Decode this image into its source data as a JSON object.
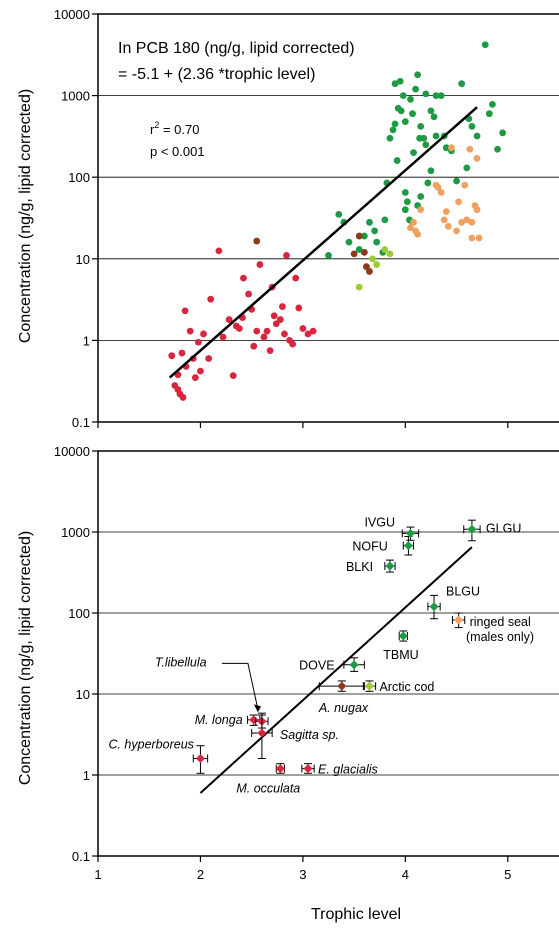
{
  "ylabel": "Concentration (ng/g, lipid corrected)",
  "xlabel": "Trophic level",
  "chart_data": [
    {
      "type": "scatter",
      "xlim": [
        1,
        5.5
      ],
      "ylim": [
        0.1,
        10000
      ],
      "yscale": "log",
      "yticks": [
        "0.1",
        "1",
        "10",
        "100",
        "1000",
        "10000"
      ],
      "xticks": [],
      "grid": "horizontal",
      "annotation_lines": [
        "In PCB 180 (ng/g, lipid corrected)",
        "= -5.1 + (2.36 *trophic level)"
      ],
      "r2_prefix": "r",
      "r2_sup": "2",
      "r2_value": " = 0.70",
      "p_text": "p < 0.001",
      "regression": {
        "x": [
          1.7,
          4.7
        ],
        "y": [
          0.35,
          720
        ]
      },
      "colors": {
        "red": "#d7263d",
        "green": "#1e9a45",
        "orange": "#f0a060",
        "brown": "#8b3a1a",
        "lightgreen": "#9acd32"
      },
      "series": [
        {
          "color_key": "red",
          "points": [
            [
              1.75,
              0.28
            ],
            [
              1.78,
              0.25
            ],
            [
              1.8,
              0.22
            ],
            [
              1.83,
              0.2
            ],
            [
              1.72,
              0.65
            ],
            [
              1.78,
              0.38
            ],
            [
              1.82,
              0.7
            ],
            [
              1.86,
              0.48
            ],
            [
              1.9,
              1.3
            ],
            [
              1.93,
              0.6
            ],
            [
              1.95,
              0.35
            ],
            [
              1.98,
              0.95
            ],
            [
              2.0,
              0.42
            ],
            [
              2.03,
              1.2
            ],
            [
              2.08,
              0.6
            ],
            [
              2.1,
              3.2
            ],
            [
              2.18,
              12.5
            ],
            [
              2.22,
              1.1
            ],
            [
              2.28,
              1.8
            ],
            [
              2.32,
              0.37
            ],
            [
              2.35,
              1.5
            ],
            [
              2.38,
              1.4
            ],
            [
              2.41,
              1.9
            ],
            [
              2.42,
              5.8
            ],
            [
              2.47,
              3.7
            ],
            [
              2.5,
              2.4
            ],
            [
              2.55,
              1.3
            ],
            [
              2.58,
              8.5
            ],
            [
              2.62,
              1.1
            ],
            [
              2.68,
              0.75
            ],
            [
              2.7,
              4.5
            ],
            [
              2.72,
              2.0
            ],
            [
              2.74,
              1.6
            ],
            [
              2.78,
              1.8
            ],
            [
              2.82,
              1.2
            ],
            [
              2.84,
              11.0
            ],
            [
              2.87,
              1.0
            ],
            [
              2.9,
              0.9
            ],
            [
              2.93,
              5.8
            ],
            [
              2.96,
              2.5
            ],
            [
              3.0,
              1.4
            ],
            [
              3.05,
              1.2
            ],
            [
              3.1,
              1.3
            ],
            [
              1.85,
              2.3
            ],
            [
              2.65,
              1.3
            ],
            [
              2.52,
              0.85
            ],
            [
              2.8,
              2.6
            ]
          ]
        },
        {
          "color_key": "green",
          "points": [
            [
              3.25,
              11.0
            ],
            [
              3.35,
              35
            ],
            [
              3.4,
              28
            ],
            [
              3.45,
              16
            ],
            [
              3.55,
              13
            ],
            [
              3.6,
              19
            ],
            [
              3.65,
              28
            ],
            [
              3.7,
              22
            ],
            [
              3.72,
              16
            ],
            [
              3.78,
              12
            ],
            [
              3.8,
              30
            ],
            [
              3.82,
              85
            ],
            [
              3.85,
              300
            ],
            [
              3.88,
              380
            ],
            [
              3.9,
              450
            ],
            [
              3.93,
              700
            ],
            [
              3.95,
              1500
            ],
            [
              3.98,
              1000
            ],
            [
              4.0,
              40
            ],
            [
              4.02,
              50
            ],
            [
              4.05,
              900
            ],
            [
              4.07,
              600
            ],
            [
              4.1,
              1200
            ],
            [
              4.12,
              1800
            ],
            [
              4.15,
              420
            ],
            [
              4.18,
              300
            ],
            [
              4.2,
              250
            ],
            [
              4.22,
              85
            ],
            [
              4.25,
              120
            ],
            [
              4.28,
              550
            ],
            [
              4.3,
              1000
            ],
            [
              4.35,
              1000
            ],
            [
              4.4,
              230
            ],
            [
              4.45,
              210
            ],
            [
              4.5,
              90
            ],
            [
              4.55,
              1400
            ],
            [
              4.6,
              130
            ],
            [
              4.62,
              520
            ],
            [
              4.65,
              420
            ],
            [
              4.7,
              320
            ],
            [
              4.78,
              4200
            ],
            [
              4.82,
              600
            ],
            [
              4.85,
              780
            ],
            [
              4.9,
              220
            ],
            [
              4.95,
              350
            ],
            [
              3.9,
              1400
            ],
            [
              4.0,
              480
            ],
            [
              3.96,
              650
            ],
            [
              4.08,
              200
            ],
            [
              4.0,
              65
            ],
            [
              3.92,
              160
            ],
            [
              4.04,
              30
            ],
            [
              4.12,
              45
            ],
            [
              4.15,
              58
            ],
            [
              4.07,
              28
            ],
            [
              4.14,
              300
            ],
            [
              4.3,
              320
            ],
            [
              4.38,
              320
            ],
            [
              4.2,
              1050
            ],
            [
              4.25,
              650
            ]
          ]
        },
        {
          "color_key": "orange",
          "points": [
            [
              4.05,
              24
            ],
            [
              4.08,
              28
            ],
            [
              4.1,
              22
            ],
            [
              4.12,
              20
            ],
            [
              4.15,
              40
            ],
            [
              4.3,
              80
            ],
            [
              4.32,
              75
            ],
            [
              4.35,
              65
            ],
            [
              4.38,
              30
            ],
            [
              4.4,
              38
            ],
            [
              4.42,
              25
            ],
            [
              4.45,
              230
            ],
            [
              4.5,
              22
            ],
            [
              4.55,
              28
            ],
            [
              4.6,
              30
            ],
            [
              4.65,
              18
            ],
            [
              4.68,
              45
            ],
            [
              4.7,
              40
            ],
            [
              4.72,
              18
            ],
            [
              4.58,
              80
            ],
            [
              4.63,
              220
            ],
            [
              4.7,
              170
            ],
            [
              4.52,
              50
            ],
            [
              4.65,
              28
            ]
          ]
        },
        {
          "color_key": "brown",
          "points": [
            [
              2.55,
              16.5
            ],
            [
              3.5,
              11.5
            ],
            [
              3.55,
              19
            ],
            [
              3.62,
              8
            ],
            [
              3.65,
              7
            ],
            [
              3.6,
              12
            ]
          ]
        },
        {
          "color_key": "lightgreen",
          "points": [
            [
              3.55,
              4.5
            ],
            [
              3.68,
              10
            ],
            [
              3.72,
              8.5
            ],
            [
              3.8,
              13
            ],
            [
              3.85,
              11.5
            ]
          ]
        }
      ]
    },
    {
      "type": "scatter",
      "xlim": [
        1,
        5.5
      ],
      "ylim": [
        0.1,
        10000
      ],
      "yscale": "log",
      "yticks": [
        "0.1",
        "1",
        "10",
        "100",
        "1000",
        "10000"
      ],
      "xticks": [
        "1",
        "2",
        "3",
        "4",
        "5"
      ],
      "grid": "horizontal",
      "regression": {
        "x": [
          2.0,
          4.65
        ],
        "y": [
          0.6,
          650
        ]
      },
      "points": [
        {
          "label": "C. hyperboreus",
          "italic": true,
          "x": 2.0,
          "y": 1.6,
          "xerr": 0.07,
          "ylo": 1.05,
          "yhi": 2.3,
          "color_key": "red"
        },
        {
          "label": "M. longa",
          "italic": true,
          "x": 2.52,
          "y": 4.8,
          "xerr": 0.06,
          "ylo": 4.1,
          "yhi": 5.5,
          "color_key": "red"
        },
        {
          "label": "T.libellula",
          "italic": true,
          "x": 2.6,
          "y": 4.6,
          "xerr": 0.06,
          "ylo": 3.8,
          "yhi": 5.8,
          "color_key": "red"
        },
        {
          "label": "Sagitta sp.",
          "italic": true,
          "x": 2.6,
          "y": 3.3,
          "xerr": 0.1,
          "ylo": 1.6,
          "yhi": 5.5,
          "color_key": "red"
        },
        {
          "label": "M. occulata",
          "italic": true,
          "x": 2.78,
          "y": 1.2,
          "xerr": 0.04,
          "ylo": 1.05,
          "yhi": 1.38,
          "color_key": "red"
        },
        {
          "label": "E. glacialis",
          "italic": true,
          "x": 3.05,
          "y": 1.2,
          "xerr": 0.06,
          "ylo": 1.05,
          "yhi": 1.38,
          "color_key": "red"
        },
        {
          "label": "A. nugax",
          "italic": true,
          "x": 3.38,
          "y": 12.5,
          "xerr": 0.22,
          "ylo": 10.8,
          "yhi": 14.5,
          "color_key": "brown"
        },
        {
          "label": "Arctic cod",
          "italic": false,
          "x": 3.65,
          "y": 12.5,
          "xerr": 0.06,
          "ylo": 10.8,
          "yhi": 14.5,
          "color_key": "lightgreen"
        },
        {
          "label": "DOVE",
          "italic": false,
          "x": 3.5,
          "y": 23,
          "xerr": 0.1,
          "ylo": 19,
          "yhi": 28,
          "color_key": "green"
        },
        {
          "label": "TBMU",
          "italic": false,
          "x": 3.98,
          "y": 52,
          "xerr": 0.04,
          "ylo": 45,
          "yhi": 60,
          "color_key": "green"
        },
        {
          "label": "BLGU",
          "italic": false,
          "x": 4.28,
          "y": 120,
          "xerr": 0.06,
          "ylo": 85,
          "yhi": 165,
          "color_key": "green"
        },
        {
          "label": "ringed seal",
          "italic": false,
          "x": 4.52,
          "y": 82,
          "xerr": 0.06,
          "ylo": 66,
          "yhi": 100,
          "color_key": "orange"
        },
        {
          "label": "BLKI",
          "italic": false,
          "x": 3.85,
          "y": 380,
          "xerr": 0.05,
          "ylo": 320,
          "yhi": 450,
          "color_key": "green"
        },
        {
          "label": "NOFU",
          "italic": false,
          "x": 4.03,
          "y": 680,
          "xerr": 0.05,
          "ylo": 520,
          "yhi": 880,
          "color_key": "green"
        },
        {
          "label": "IVGU",
          "italic": false,
          "x": 4.05,
          "y": 960,
          "xerr": 0.08,
          "ylo": 790,
          "yhi": 1150,
          "color_key": "green"
        },
        {
          "label": "GLGU",
          "italic": false,
          "x": 4.65,
          "y": 1080,
          "xerr": 0.08,
          "ylo": 780,
          "yhi": 1400,
          "color_key": "green"
        }
      ],
      "extra_label": "(males only)"
    }
  ]
}
